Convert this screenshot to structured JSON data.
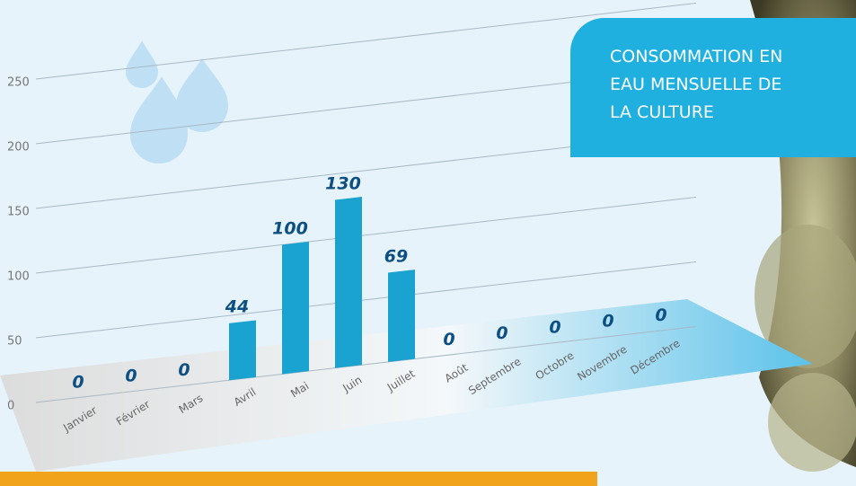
{
  "chart_data": {
    "type": "bar",
    "title": "CONSOMMATION EN EAU MENSUELLE DE LA CULTURE",
    "categories": [
      "Janvier",
      "Février",
      "Mars",
      "Avril",
      "Mai",
      "Juin",
      "Juillet",
      "Août",
      "Septembre",
      "Octobre",
      "Novembre",
      "Décembre"
    ],
    "values": [
      0,
      0,
      0,
      44,
      100,
      130,
      69,
      0,
      0,
      0,
      0,
      0
    ],
    "color": "#1aa3d0",
    "ylim": [
      0,
      250
    ],
    "yticks": [
      0,
      50,
      100,
      150,
      200,
      250
    ],
    "grid": true
  }
}
